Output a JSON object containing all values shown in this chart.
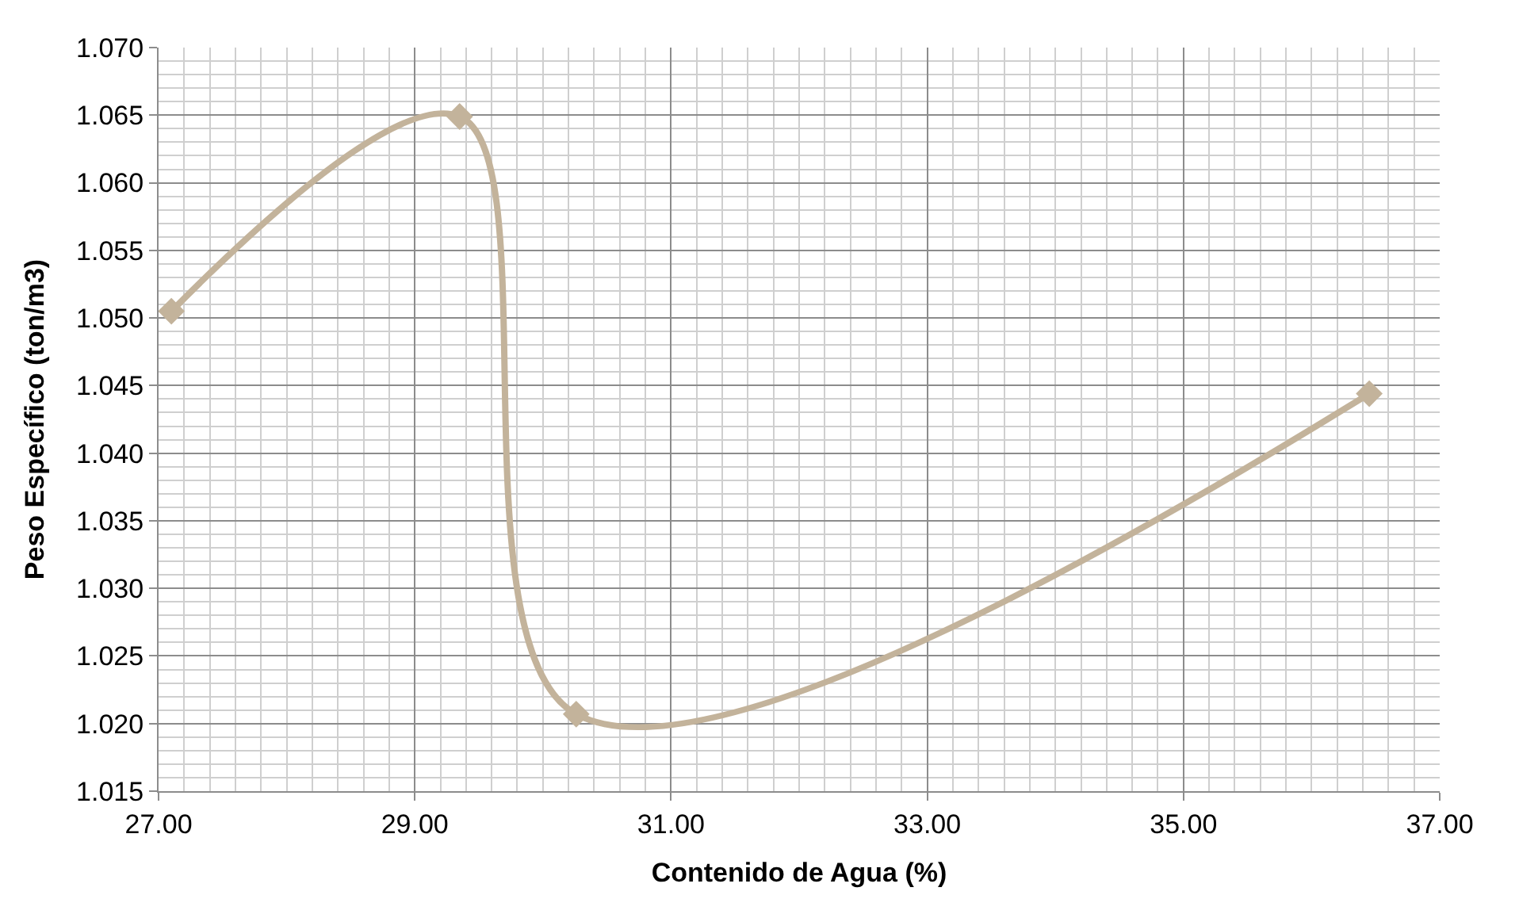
{
  "chart_data": {
    "type": "line",
    "xlabel": "Contenido de Agua (%)",
    "ylabel": "Peso Específico (ton/m3)",
    "x": [
      27.1,
      29.35,
      30.26,
      36.45
    ],
    "series": [
      {
        "color": "#c3b39b",
        "values": [
          1.0505,
          1.0649,
          1.0207,
          1.0444
        ]
      }
    ],
    "xlim": [
      27,
      37
    ],
    "xticks": [
      {
        "value": 27,
        "label": "27.00"
      },
      {
        "value": 29,
        "label": "29.00"
      },
      {
        "value": 31,
        "label": "31.00"
      },
      {
        "value": 33,
        "label": "33.00"
      },
      {
        "value": 35,
        "label": "35.00"
      },
      {
        "value": 37,
        "label": "37.00"
      }
    ],
    "ylim": [
      1.015,
      1.07
    ],
    "yticks": [
      {
        "value": 1.015,
        "label": "1.015"
      },
      {
        "value": 1.02,
        "label": "1.020"
      },
      {
        "value": 1.025,
        "label": "1.025"
      },
      {
        "value": 1.03,
        "label": "1.030"
      },
      {
        "value": 1.035,
        "label": "1.035"
      },
      {
        "value": 1.04,
        "label": "1.040"
      },
      {
        "value": 1.045,
        "label": "1.045"
      },
      {
        "value": 1.05,
        "label": "1.050"
      },
      {
        "value": 1.055,
        "label": "1.055"
      },
      {
        "value": 1.06,
        "label": "1.060"
      },
      {
        "value": 1.065,
        "label": "1.065"
      },
      {
        "value": 1.07,
        "label": "1.070"
      }
    ],
    "grid": true,
    "marker": "diamond",
    "line_style": "solid",
    "legend": false
  }
}
